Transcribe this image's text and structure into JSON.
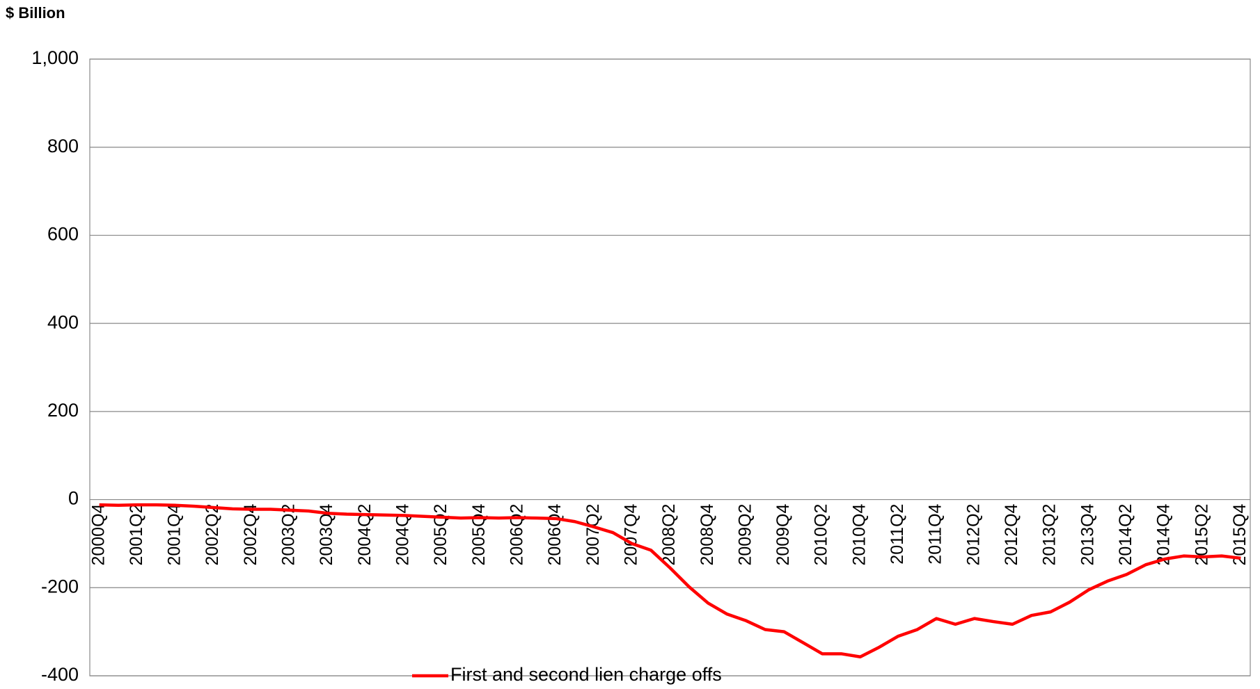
{
  "chart_data": {
    "type": "line",
    "y_label": "$ Billion",
    "categories": [
      "2000Q4",
      null,
      "2001Q2",
      null,
      "2001Q4",
      null,
      "2002Q2",
      null,
      "2002Q4",
      null,
      "2003Q2",
      null,
      "2003Q4",
      null,
      "2004Q2",
      null,
      "2004Q4",
      null,
      "2005Q2",
      null,
      "2005Q4",
      null,
      "2006Q2",
      null,
      "2006Q4",
      null,
      "2007Q2",
      null,
      "2007Q4",
      null,
      "2008Q2",
      null,
      "2008Q4",
      null,
      "2009Q2",
      null,
      "2009Q4",
      null,
      "2010Q2",
      null,
      "2010Q4",
      null,
      "2011Q2",
      null,
      "2011Q4",
      null,
      "2012Q2",
      null,
      "2012Q4",
      null,
      "2013Q2",
      null,
      "2013Q4",
      null,
      "2014Q2",
      null,
      "2014Q4",
      null,
      "2015Q2",
      null,
      "2015Q4"
    ],
    "series": [
      {
        "name": "First and second lien charge offs",
        "color": "#ff0000",
        "values": [
          -12,
          -13,
          -12,
          -12,
          -13,
          -15,
          -18,
          -21,
          -22,
          -22,
          -24,
          -26,
          -31,
          -33,
          -34,
          -35,
          -36,
          -38,
          -40,
          -42,
          -41,
          -42,
          -41,
          -42,
          -43,
          -50,
          -62,
          -75,
          -100,
          -115,
          -155,
          -198,
          -235,
          -260,
          -275,
          -295,
          -300,
          -325,
          -350,
          -350,
          -357,
          -335,
          -310,
          -295,
          -270,
          -283,
          -270,
          -277,
          -283,
          -263,
          -255,
          -233,
          -205,
          -185,
          -170,
          -148,
          -135,
          -128,
          -130,
          -128,
          -133
        ]
      }
    ],
    "ylim": [
      -400,
      1000
    ],
    "yticks": [
      -400,
      -200,
      0,
      200,
      400,
      600,
      800,
      {
        "value": 1000,
        "label": "1,000"
      }
    ],
    "grid": true,
    "legend": "bottom"
  }
}
